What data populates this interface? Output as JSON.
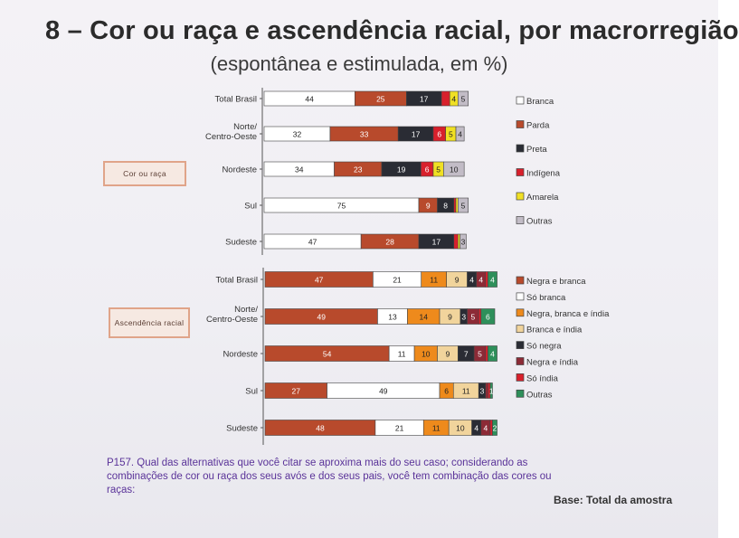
{
  "header": {
    "title": "8 – Cor ou raça e ascendência racial, por macrorregião",
    "subtitle": "(espontânea e estimulada, em %)"
  },
  "footer": {
    "question": "P157. Qual das alternativas que você citar se aproxima mais do seu caso; considerando as combinações de cor ou raça dos seus avós e dos seus pais, você tem combinação das cores ou raças:",
    "base": "Base: Total da amostra"
  },
  "chart_data": [
    {
      "type": "bar",
      "orientation": "horizontal",
      "stacked": true,
      "group_label": "Cor ou raça",
      "categories": [
        "Total Brasil",
        "Norte/ Centro-Oeste",
        "Nordeste",
        "Sul",
        "Sudeste"
      ],
      "series": [
        {
          "name": "Branca",
          "color": "#ffffff",
          "values": [
            44,
            32,
            34,
            75,
            47
          ]
        },
        {
          "name": "Parda",
          "color": "#b84a2c",
          "values": [
            25,
            33,
            23,
            9,
            28
          ]
        },
        {
          "name": "Preta",
          "color": "#2a2c34",
          "values": [
            17,
            17,
            19,
            8,
            17
          ]
        },
        {
          "name": "Indígena",
          "color": "#d8202c",
          "values": [
            4,
            6,
            6,
            1,
            2
          ]
        },
        {
          "name": "Amarela",
          "color": "#f0e024",
          "values": [
            4,
            5,
            5,
            1,
            1
          ]
        },
        {
          "name": "Outras",
          "color": "#c2bcc6",
          "values": [
            5,
            4,
            10,
            5,
            3
          ]
        }
      ],
      "value_labels": [
        [
          "44",
          "25",
          "17",
          "",
          "4",
          "5"
        ],
        [
          "32",
          "33",
          "17",
          "6",
          "5",
          "4"
        ],
        [
          "34",
          "23",
          "19",
          "6",
          "5",
          "10"
        ],
        [
          "75",
          "9",
          "8",
          "",
          "",
          "5"
        ],
        [
          "47",
          "28",
          "17",
          "",
          "",
          "3"
        ]
      ],
      "xlim": [
        0,
        100
      ]
    },
    {
      "type": "bar",
      "orientation": "horizontal",
      "stacked": true,
      "group_label": "Ascendência racial",
      "categories": [
        "Total Brasil",
        "Norte/ Centro-Oeste",
        "Nordeste",
        "Sul",
        "Sudeste"
      ],
      "series": [
        {
          "name": "Negra e branca",
          "color": "#b84a2c",
          "values": [
            47,
            49,
            54,
            27,
            48
          ]
        },
        {
          "name": "Só branca",
          "color": "#ffffff",
          "values": [
            21,
            13,
            11,
            49,
            21
          ]
        },
        {
          "name": "Negra, branca e índia",
          "color": "#ee8a1c",
          "values": [
            11,
            14,
            10,
            6,
            11
          ]
        },
        {
          "name": "Branca e índia",
          "color": "#f1d49c",
          "values": [
            9,
            9,
            9,
            11,
            10
          ]
        },
        {
          "name": "Só negra",
          "color": "#2a2c34",
          "values": [
            4,
            3,
            7,
            3,
            4
          ]
        },
        {
          "name": "Negra e índia",
          "color": "#8c2a36",
          "values": [
            4,
            5,
            5,
            1,
            4
          ]
        },
        {
          "name": "Só índia",
          "color": "#d8202c",
          "values": [
            1,
            1,
            1,
            1,
            1
          ]
        },
        {
          "name": "Outras",
          "color": "#2e8f5a",
          "values": [
            4,
            6,
            4,
            1,
            2
          ]
        }
      ],
      "value_labels": [
        [
          "47",
          "21",
          "11",
          "9",
          "4",
          "4",
          "",
          "4"
        ],
        [
          "49",
          "13",
          "14",
          "9",
          "3",
          "5",
          "",
          "6"
        ],
        [
          "54",
          "11",
          "10",
          "9",
          "7",
          "5",
          "",
          "4"
        ],
        [
          "27",
          "49",
          "6",
          "11",
          "3",
          "",
          "",
          "1"
        ],
        [
          "48",
          "21",
          "11",
          "10",
          "4",
          "4",
          "",
          "2"
        ]
      ],
      "xlim": [
        0,
        100
      ]
    }
  ]
}
